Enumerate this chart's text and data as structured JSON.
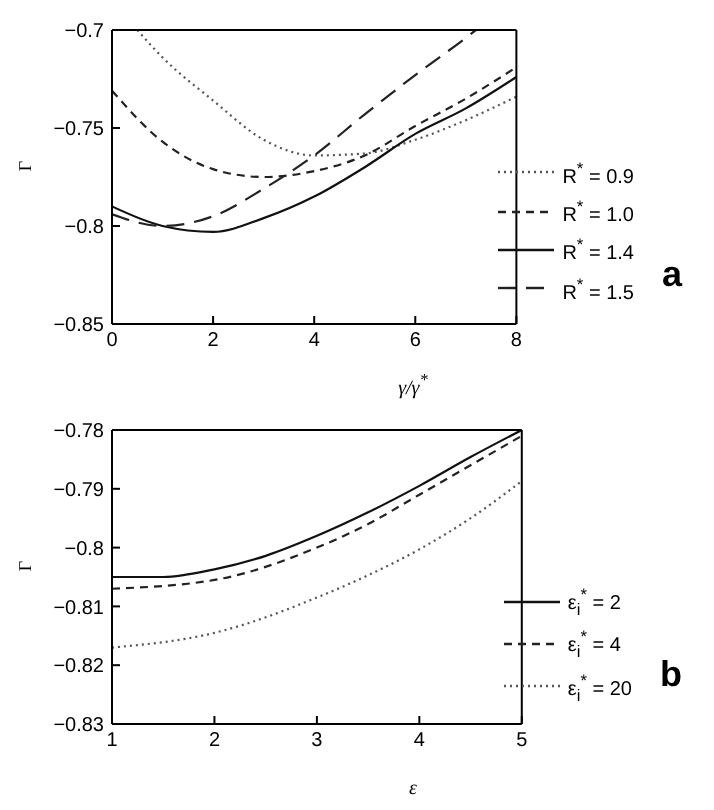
{
  "chart_data": [
    {
      "type": "line",
      "xlabel": "γ/γ$^{*}$",
      "ylabel": "Γ",
      "xlim": [
        0,
        8
      ],
      "xticks": [
        0,
        2,
        4,
        6,
        8
      ],
      "ylim": [
        -0.85,
        -0.7
      ],
      "yticks": [
        {
          "value": -0.85,
          "label": "−0.85"
        },
        {
          "value": -0.8,
          "label": "−0.8"
        },
        {
          "value": -0.75,
          "label": "−0.75"
        },
        {
          "value": -0.7,
          "label": "−0.7"
        }
      ],
      "legend": "bottom right",
      "grid": false,
      "marker": "none",
      "annotations": [
        "a"
      ],
      "series": [
        {
          "name": "R$^{*}$ = 0.9",
          "color": "#555555",
          "line_style": "dotted",
          "x": [
            0.5,
            1,
            2,
            3,
            4,
            5,
            6,
            7,
            8
          ],
          "values": [
            -0.7,
            -0.714,
            -0.736,
            -0.756,
            -0.764,
            -0.763,
            -0.756,
            -0.746,
            -0.734
          ]
        },
        {
          "name": "R$^{*}$ = 1.0",
          "color": "#222222",
          "line_style": "dashed",
          "x": [
            0,
            1,
            2,
            3,
            4,
            5,
            6,
            7,
            8
          ],
          "values": [
            -0.731,
            -0.757,
            -0.771,
            -0.775,
            -0.772,
            -0.764,
            -0.749,
            -0.735,
            -0.719
          ]
        },
        {
          "name": "R$^{*}$ = 1.4",
          "color": "#111111",
          "line_style": "solid",
          "x": [
            0,
            1,
            2,
            3,
            4,
            5,
            6,
            7,
            8
          ],
          "values": [
            -0.79,
            -0.8,
            -0.803,
            -0.796,
            -0.785,
            -0.77,
            -0.753,
            -0.74,
            -0.724
          ]
        },
        {
          "name": "R$^{*}$ = 1.5",
          "color": "#222222",
          "line_style": "dashed",
          "x": [
            0,
            1,
            2,
            3,
            4,
            5,
            6,
            7,
            7.2
          ],
          "values": [
            -0.794,
            -0.8,
            -0.795,
            -0.781,
            -0.764,
            -0.743,
            -0.723,
            -0.704,
            -0.7
          ]
        }
      ]
    },
    {
      "type": "line",
      "xlabel": "ε",
      "ylabel": "Γ",
      "xlim": [
        1,
        5
      ],
      "xticks": [
        1,
        2,
        3,
        4,
        5
      ],
      "ylim": [
        -0.83,
        -0.78
      ],
      "yticks": [
        {
          "value": -0.83,
          "label": "−0.83"
        },
        {
          "value": -0.82,
          "label": "−0.82"
        },
        {
          "value": -0.81,
          "label": "−0.81"
        },
        {
          "value": -0.8,
          "label": "−0.8"
        },
        {
          "value": -0.79,
          "label": "−0.79"
        },
        {
          "value": -0.78,
          "label": "−0.78"
        }
      ],
      "legend": "bottom right",
      "grid": false,
      "marker": "none",
      "annotations": [
        "b"
      ],
      "series": [
        {
          "name": "ε$_{i}$$^{*}$ = 2",
          "color": "#111111",
          "line_style": "solid",
          "x": [
            1,
            1.5,
            2,
            2.5,
            3,
            3.5,
            4,
            4.5,
            5
          ],
          "values": [
            -0.805,
            -0.805,
            -0.8037,
            -0.8014,
            -0.798,
            -0.794,
            -0.7895,
            -0.7846,
            -0.78
          ]
        },
        {
          "name": "ε$_{i}$$^{*}$ = 4",
          "color": "#222222",
          "line_style": "dashed",
          "x": [
            1,
            2,
            3,
            3.5,
            4,
            4.5,
            5
          ],
          "values": [
            -0.807,
            -0.8055,
            -0.8,
            -0.796,
            -0.791,
            -0.786,
            -0.781
          ]
        },
        {
          "name": "ε$_{i}$$^{*}$ = 20",
          "color": "#555555",
          "line_style": "dotted",
          "x": [
            1,
            2,
            3,
            3.5,
            4,
            4.5,
            5
          ],
          "values": [
            -0.817,
            -0.8145,
            -0.8085,
            -0.8047,
            -0.8003,
            -0.795,
            -0.7887
          ]
        }
      ]
    }
  ]
}
